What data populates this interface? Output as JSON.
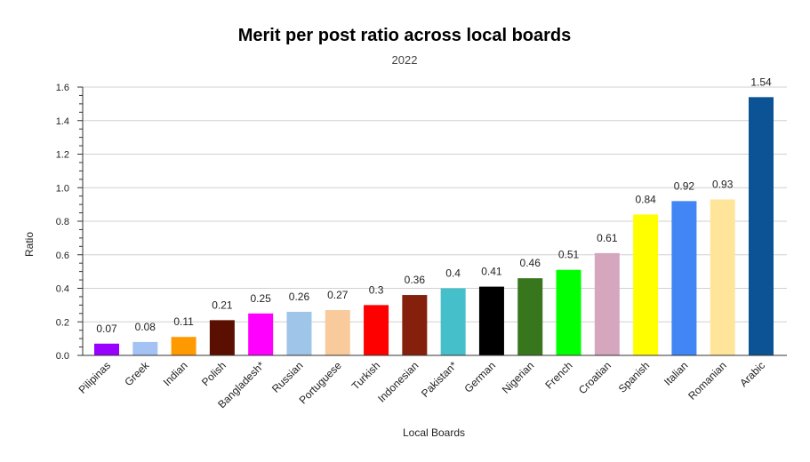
{
  "chart_data": {
    "type": "bar",
    "title": "Merit per post ratio across local boards",
    "subtitle": "2022",
    "xlabel": "Local Boards",
    "ylabel": "Ratio",
    "ylim": [
      0,
      1.6
    ],
    "yticks": [
      "0.0",
      "0.2",
      "0.4",
      "0.6",
      "0.8",
      "1.0",
      "1.2",
      "1.4",
      "1.6"
    ],
    "grid": true,
    "categories": [
      "Pilipinas",
      "Greek",
      "Indian",
      "Polish",
      "Bangladesh*",
      "Russian",
      "Portuguese",
      "Turkish",
      "Indonesian",
      "Pakistan*",
      "German",
      "Nigerian",
      "French",
      "Croatian",
      "Spanish",
      "Italian",
      "Romanian",
      "Arabic"
    ],
    "values": [
      0.07,
      0.08,
      0.11,
      0.21,
      0.25,
      0.26,
      0.27,
      0.3,
      0.36,
      0.4,
      0.41,
      0.46,
      0.51,
      0.61,
      0.84,
      0.92,
      0.93,
      1.54
    ],
    "data_labels": [
      "0.07",
      "0.08",
      "0.11",
      "0.21",
      "0.25",
      "0.26",
      "0.27",
      "0.3",
      "0.36",
      "0.4",
      "0.41",
      "0.46",
      "0.51",
      "0.61",
      "0.84",
      "0.92",
      "0.93",
      "1.54"
    ],
    "colors": [
      "#9900ff",
      "#a4c2f4",
      "#ff9900",
      "#5b0f00",
      "#ff00ff",
      "#9fc5e8",
      "#f9cb9c",
      "#ff0000",
      "#85200c",
      "#45bfc9",
      "#000000",
      "#38761d",
      "#00ff00",
      "#d5a6bd",
      "#ffff00",
      "#4285f4",
      "#ffe599",
      "#0b5394"
    ]
  }
}
